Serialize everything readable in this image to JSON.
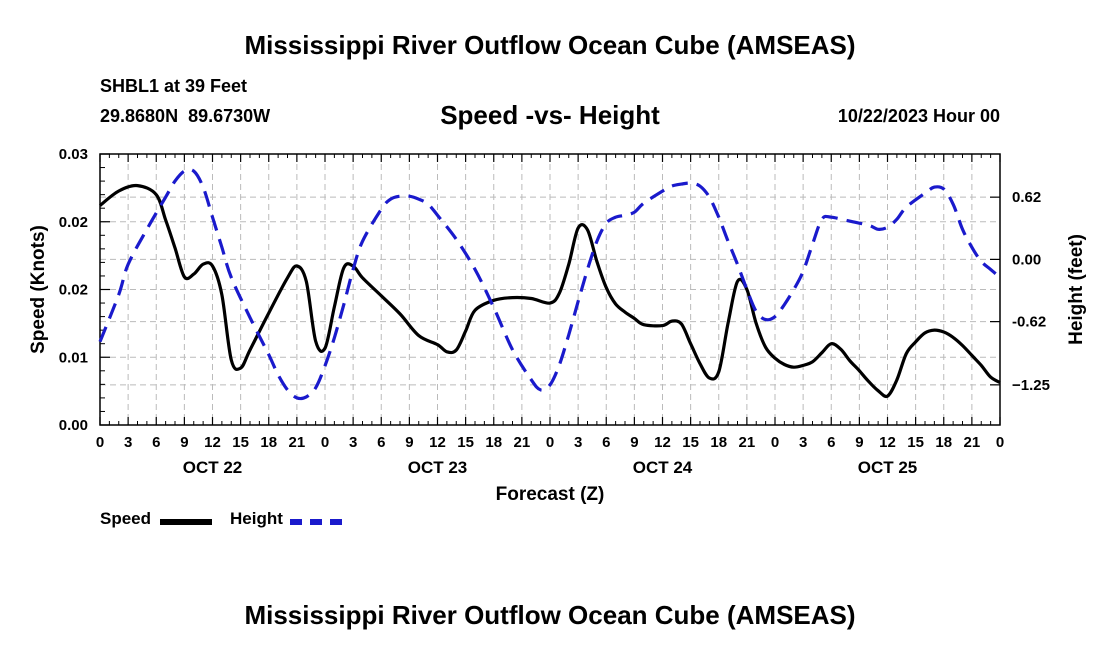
{
  "title": "Mississippi River Outflow Ocean Cube (AMSEAS)",
  "footer_title": "Mississippi River Outflow Ocean Cube (AMSEAS)",
  "station": "SHBL1 at 39 Feet",
  "coords": "29.8680N  89.6730W",
  "datetime": "10/22/2023 Hour 00",
  "colors": {
    "speed": "#000000",
    "height": "#1a1acc"
  },
  "chart_data": {
    "type": "line",
    "title": "Speed -vs- Height",
    "xlabel": "Forecast (Z)",
    "ylabel": "Speed (Knots)",
    "ylabel_right": "Height (feet)",
    "x_ticks": [
      "0",
      "3",
      "6",
      "9",
      "12",
      "15",
      "18",
      "21",
      "0",
      "3",
      "6",
      "9",
      "12",
      "15",
      "18",
      "21",
      "0",
      "3",
      "6",
      "9",
      "12",
      "15",
      "18",
      "21",
      "0",
      "3",
      "6",
      "9",
      "12",
      "15",
      "18",
      "21",
      "0"
    ],
    "day_labels": [
      {
        "label": "OCT 22",
        "hour": 12
      },
      {
        "label": "OCT 23",
        "hour": 36
      },
      {
        "label": "OCT 24",
        "hour": 60
      },
      {
        "label": "OCT 25",
        "hour": 84
      }
    ],
    "x_range": [
      0,
      96
    ],
    "y_left": {
      "range": [
        0,
        0.03
      ],
      "ticks": [
        "0.00",
        "0.01",
        "0.02",
        "0.02",
        "0.03"
      ]
    },
    "y_right": {
      "range": [
        -1.65,
        1.05
      ],
      "ticks": [
        {
          "value": 0.62,
          "label": "0.62"
        },
        {
          "value": 0.0,
          "label": "0.00"
        },
        {
          "value": -0.62,
          "label": "-0.62"
        },
        {
          "value": -1.25,
          "label": "−1.25"
        }
      ]
    },
    "series": [
      {
        "name": "Speed",
        "axis": "left",
        "style": "solid",
        "points": [
          [
            0,
            0.0243
          ],
          [
            2,
            0.0259
          ],
          [
            4,
            0.0265
          ],
          [
            6,
            0.0255
          ],
          [
            7,
            0.0227
          ],
          [
            8,
            0.0196
          ],
          [
            9,
            0.0164
          ],
          [
            10,
            0.0167
          ],
          [
            11,
            0.0178
          ],
          [
            12,
            0.0176
          ],
          [
            13,
            0.0144
          ],
          [
            14,
            0.0072
          ],
          [
            15,
            0.0063
          ],
          [
            16,
            0.0083
          ],
          [
            18,
            0.0124
          ],
          [
            20,
            0.0163
          ],
          [
            21,
            0.0176
          ],
          [
            22,
            0.0159
          ],
          [
            23,
            0.0093
          ],
          [
            24,
            0.0085
          ],
          [
            25,
            0.0131
          ],
          [
            26,
            0.0174
          ],
          [
            27,
            0.0176
          ],
          [
            28,
            0.0163
          ],
          [
            30,
            0.0143
          ],
          [
            32,
            0.0123
          ],
          [
            34,
            0.0099
          ],
          [
            36,
            0.0089
          ],
          [
            37,
            0.0081
          ],
          [
            38,
            0.0083
          ],
          [
            39,
            0.0104
          ],
          [
            40,
            0.0127
          ],
          [
            42,
            0.0138
          ],
          [
            44,
            0.0141
          ],
          [
            46,
            0.014
          ],
          [
            48,
            0.0135
          ],
          [
            49,
            0.0146
          ],
          [
            50,
            0.0178
          ],
          [
            51,
            0.0218
          ],
          [
            52,
            0.0216
          ],
          [
            53,
            0.0181
          ],
          [
            54,
            0.0152
          ],
          [
            55,
            0.0134
          ],
          [
            56,
            0.0125
          ],
          [
            57,
            0.0118
          ],
          [
            58,
            0.0111
          ],
          [
            60,
            0.011
          ],
          [
            61,
            0.0115
          ],
          [
            62,
            0.0112
          ],
          [
            63,
            0.009
          ],
          [
            64,
            0.0068
          ],
          [
            65,
            0.0052
          ],
          [
            66,
            0.0059
          ],
          [
            67,
            0.0113
          ],
          [
            68,
            0.0159
          ],
          [
            69,
            0.015
          ],
          [
            70,
            0.0112
          ],
          [
            71,
            0.0086
          ],
          [
            72,
            0.0074
          ],
          [
            73,
            0.0067
          ],
          [
            74,
            0.0064
          ],
          [
            75,
            0.0066
          ],
          [
            76,
            0.007
          ],
          [
            77,
            0.008
          ],
          [
            78,
            0.009
          ],
          [
            79,
            0.0084
          ],
          [
            80,
            0.0071
          ],
          [
            81,
            0.006
          ],
          [
            82,
            0.0048
          ],
          [
            83,
            0.0038
          ],
          [
            84,
            0.0032
          ],
          [
            85,
            0.005
          ],
          [
            86,
            0.0079
          ],
          [
            87,
            0.0092
          ],
          [
            88,
            0.0102
          ],
          [
            89,
            0.0105
          ],
          [
            90,
            0.0103
          ],
          [
            91,
            0.0097
          ],
          [
            92,
            0.0088
          ],
          [
            93,
            0.0077
          ],
          [
            94,
            0.0066
          ],
          [
            95,
            0.0053
          ],
          [
            96,
            0.0047
          ]
        ]
      },
      {
        "name": "Height",
        "axis": "right",
        "style": "dashed",
        "points": [
          [
            0,
            -0.82
          ],
          [
            2,
            -0.35
          ],
          [
            3,
            -0.05
          ],
          [
            5,
            0.3
          ],
          [
            7,
            0.62
          ],
          [
            8,
            0.78
          ],
          [
            9,
            0.88
          ],
          [
            10,
            0.88
          ],
          [
            11,
            0.72
          ],
          [
            12,
            0.42
          ],
          [
            13,
            0.12
          ],
          [
            14,
            -0.18
          ],
          [
            16,
            -0.58
          ],
          [
            18,
            -0.95
          ],
          [
            19,
            -1.15
          ],
          [
            20,
            -1.3
          ],
          [
            21,
            -1.38
          ],
          [
            22,
            -1.37
          ],
          [
            23,
            -1.28
          ],
          [
            24,
            -1.06
          ],
          [
            25,
            -0.78
          ],
          [
            26,
            -0.45
          ],
          [
            27,
            -0.1
          ],
          [
            28,
            0.18
          ],
          [
            30,
            0.5
          ],
          [
            31,
            0.6
          ],
          [
            32,
            0.63
          ],
          [
            33,
            0.63
          ],
          [
            34,
            0.6
          ],
          [
            35,
            0.55
          ],
          [
            36,
            0.44
          ],
          [
            38,
            0.2
          ],
          [
            40,
            -0.1
          ],
          [
            42,
            -0.48
          ],
          [
            44,
            -0.9
          ],
          [
            46,
            -1.2
          ],
          [
            47,
            -1.3
          ],
          [
            48,
            -1.25
          ],
          [
            49,
            -1.05
          ],
          [
            50,
            -0.75
          ],
          [
            51,
            -0.42
          ],
          [
            52,
            -0.1
          ],
          [
            53,
            0.18
          ],
          [
            54,
            0.36
          ],
          [
            55,
            0.42
          ],
          [
            56,
            0.44
          ],
          [
            57,
            0.47
          ],
          [
            58,
            0.56
          ],
          [
            60,
            0.68
          ],
          [
            61,
            0.73
          ],
          [
            62,
            0.75
          ],
          [
            63,
            0.76
          ],
          [
            64,
            0.73
          ],
          [
            65,
            0.62
          ],
          [
            66,
            0.42
          ],
          [
            67,
            0.18
          ],
          [
            68,
            -0.05
          ],
          [
            69,
            -0.3
          ],
          [
            70,
            -0.52
          ],
          [
            71,
            -0.6
          ],
          [
            72,
            -0.57
          ],
          [
            73,
            -0.45
          ],
          [
            74,
            -0.3
          ],
          [
            75,
            -0.12
          ],
          [
            76,
            0.15
          ],
          [
            77,
            0.4
          ],
          [
            78,
            0.42
          ],
          [
            80,
            0.38
          ],
          [
            82,
            0.34
          ],
          [
            83,
            0.3
          ],
          [
            84,
            0.32
          ],
          [
            85,
            0.4
          ],
          [
            86,
            0.52
          ],
          [
            88,
            0.66
          ],
          [
            89,
            0.72
          ],
          [
            90,
            0.7
          ],
          [
            91,
            0.55
          ],
          [
            92,
            0.3
          ],
          [
            93,
            0.12
          ],
          [
            94,
            -0.02
          ],
          [
            95,
            -0.1
          ],
          [
            96,
            -0.18
          ]
        ]
      }
    ]
  },
  "legend": [
    {
      "name": "Speed"
    },
    {
      "name": "Height"
    }
  ]
}
